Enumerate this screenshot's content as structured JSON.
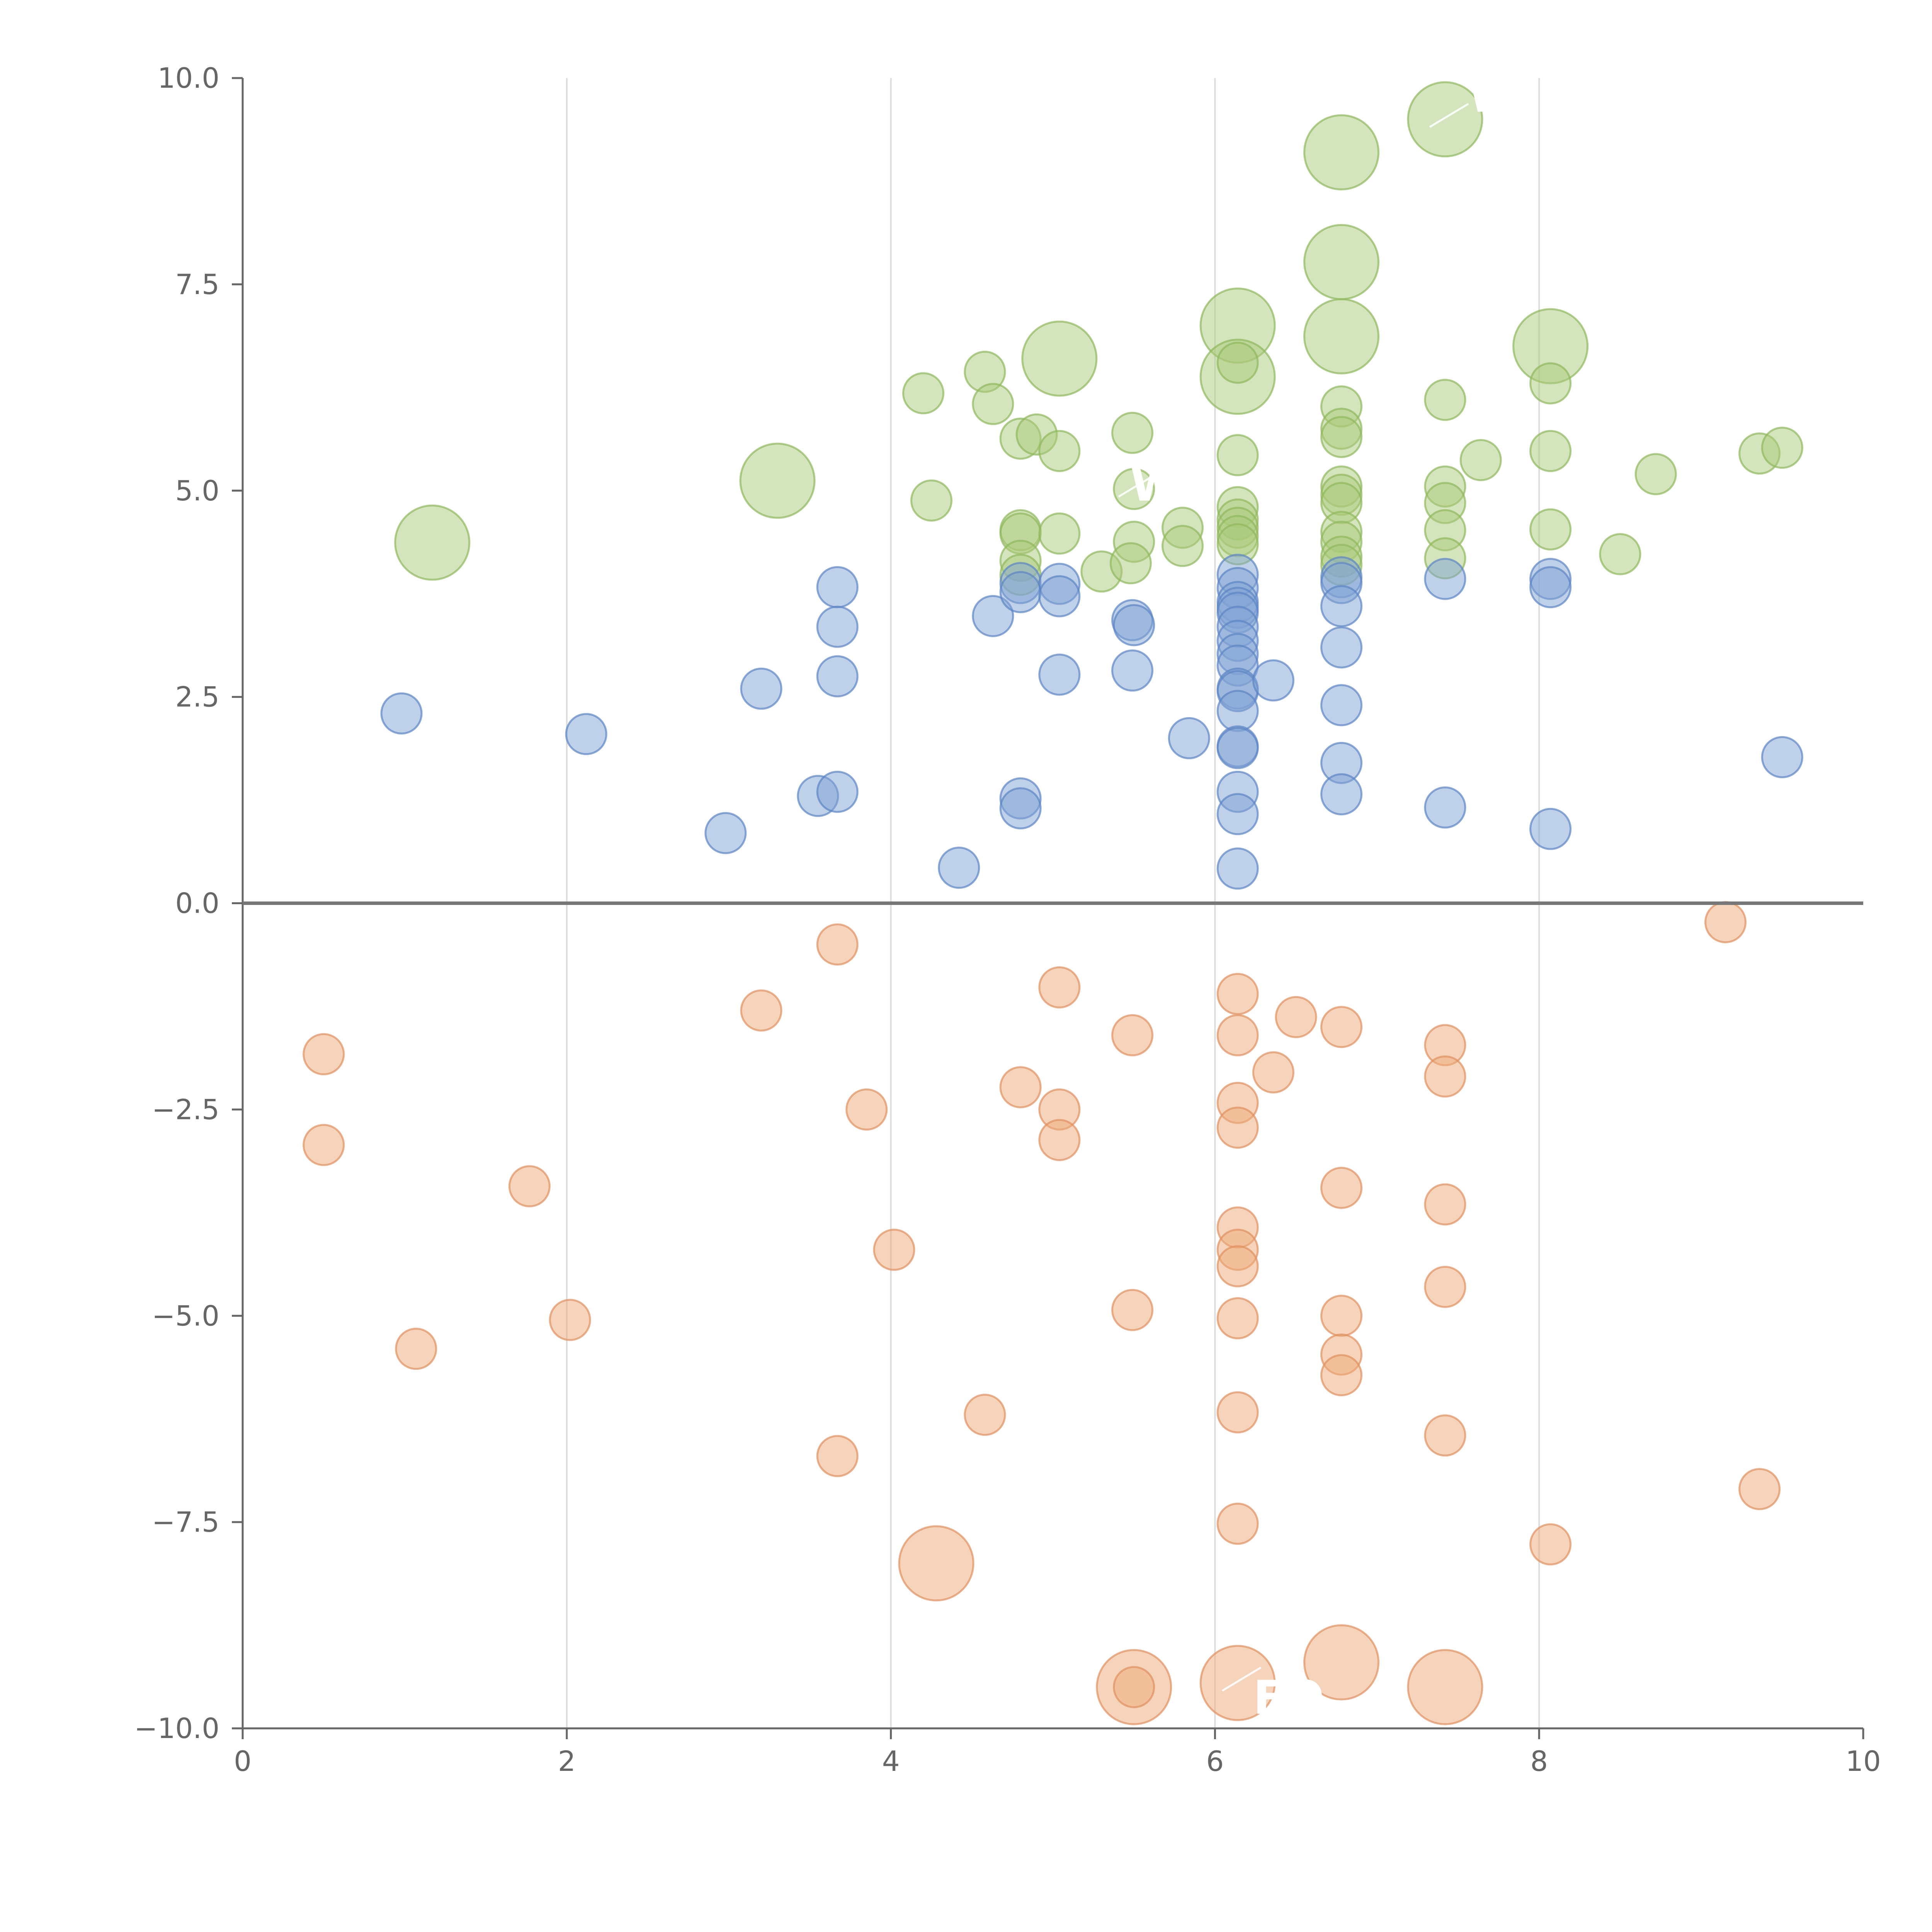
{
  "chart_data": {
    "type": "scatter",
    "title": "",
    "xlabel": "",
    "ylabel": "",
    "xlim": [
      0,
      10
    ],
    "ylim": [
      -10,
      10
    ],
    "x_ticks": [
      0,
      2,
      4,
      6,
      8,
      10
    ],
    "x_tick_labels": [
      "0",
      "2",
      "4",
      "6",
      "8",
      "10"
    ],
    "y_ticks": [
      10,
      7.5,
      5,
      2.5,
      0,
      -2.5,
      -5,
      -7.5,
      -10
    ],
    "y_tick_labels": [
      "10.0",
      "7.5",
      "5.0",
      "2.5",
      "0.0",
      "−2.5",
      "−5.0",
      "−7.5",
      "−10.0"
    ],
    "grid": "vertical",
    "reference_line_y": 0,
    "series": [
      {
        "name": "green",
        "color": "#a9c97a",
        "stroke": "#8fb85c",
        "points": [
          [
            1.17,
            4.37,
            2
          ],
          [
            3.3,
            5.12,
            2
          ],
          [
            4.2,
            6.18,
            1
          ],
          [
            4.25,
            4.88,
            1
          ],
          [
            4.58,
            6.44,
            1
          ],
          [
            4.63,
            6.05,
            1
          ],
          [
            4.8,
            5.63,
            1
          ],
          [
            4.9,
            5.68,
            1
          ],
          [
            5.04,
            6.6,
            2
          ],
          [
            5.04,
            5.48,
            1
          ],
          [
            4.8,
            4.52,
            1
          ],
          [
            4.8,
            4.48,
            1
          ],
          [
            5.04,
            4.48,
            1
          ],
          [
            4.8,
            4.15,
            1
          ],
          [
            4.8,
            3.98,
            1
          ],
          [
            5.3,
            4.02,
            1
          ],
          [
            5.49,
            5.7,
            1
          ],
          [
            5.5,
            5.02,
            1
          ],
          [
            5.5,
            4.38,
            1
          ],
          [
            5.48,
            4.12,
            1
          ],
          [
            5.8,
            4.55,
            1
          ],
          [
            5.8,
            4.33,
            1
          ],
          [
            6.14,
            7.0,
            2
          ],
          [
            6.14,
            6.38,
            2
          ],
          [
            6.14,
            6.55,
            1
          ],
          [
            6.14,
            5.43,
            1
          ],
          [
            6.14,
            4.8,
            1
          ],
          [
            6.14,
            4.65,
            1
          ],
          [
            6.14,
            4.55,
            1
          ],
          [
            6.14,
            4.45,
            1
          ],
          [
            6.14,
            4.35,
            1
          ],
          [
            6.78,
            9.1,
            2
          ],
          [
            6.78,
            7.77,
            2
          ],
          [
            6.78,
            6.87,
            2
          ],
          [
            6.78,
            6.02,
            1
          ],
          [
            6.78,
            5.75,
            1
          ],
          [
            6.78,
            5.65,
            1
          ],
          [
            6.78,
            5.05,
            1
          ],
          [
            6.78,
            4.95,
            1
          ],
          [
            6.78,
            4.85,
            1
          ],
          [
            6.78,
            4.5,
            1
          ],
          [
            6.78,
            4.38,
            1
          ],
          [
            6.78,
            4.2,
            1
          ],
          [
            6.78,
            4.1,
            1
          ],
          [
            7.42,
            9.5,
            2
          ],
          [
            7.42,
            6.1,
            1
          ],
          [
            7.42,
            5.05,
            1
          ],
          [
            7.42,
            4.85,
            1
          ],
          [
            7.42,
            4.52,
            1
          ],
          [
            7.42,
            4.18,
            1
          ],
          [
            7.64,
            5.37,
            1
          ],
          [
            8.07,
            6.75,
            2
          ],
          [
            8.07,
            6.3,
            1
          ],
          [
            8.07,
            5.48,
            1
          ],
          [
            8.07,
            4.53,
            1
          ],
          [
            8.5,
            4.23,
            1
          ],
          [
            8.72,
            5.2,
            1
          ],
          [
            9.36,
            5.45,
            1
          ],
          [
            9.5,
            5.52,
            1
          ]
        ]
      },
      {
        "name": "blue",
        "color": "#7fa2d4",
        "stroke": "#5b84c4",
        "points": [
          [
            0.98,
            2.3,
            1
          ],
          [
            2.12,
            2.05,
            1
          ],
          [
            2.98,
            0.85,
            1
          ],
          [
            3.2,
            2.6,
            1
          ],
          [
            3.55,
            1.3,
            1
          ],
          [
            3.67,
            3.83,
            1
          ],
          [
            3.67,
            3.35,
            1
          ],
          [
            3.67,
            2.75,
            1
          ],
          [
            3.67,
            1.35,
            1
          ],
          [
            4.42,
            0.43,
            1
          ],
          [
            4.63,
            3.48,
            1
          ],
          [
            4.8,
            3.88,
            1
          ],
          [
            4.8,
            3.77,
            1
          ],
          [
            4.8,
            1.27,
            1
          ],
          [
            4.8,
            1.15,
            1
          ],
          [
            5.04,
            3.87,
            1
          ],
          [
            5.04,
            3.72,
            1
          ],
          [
            5.04,
            2.77,
            1
          ],
          [
            5.49,
            3.43,
            1
          ],
          [
            5.5,
            3.37,
            1
          ],
          [
            5.49,
            2.82,
            1
          ],
          [
            5.84,
            2.0,
            1
          ],
          [
            6.14,
            3.98,
            1
          ],
          [
            6.14,
            3.82,
            1
          ],
          [
            6.14,
            3.65,
            1
          ],
          [
            6.14,
            3.58,
            1
          ],
          [
            6.14,
            3.52,
            1
          ],
          [
            6.14,
            3.35,
            1
          ],
          [
            6.14,
            3.18,
            1
          ],
          [
            6.14,
            3.02,
            1
          ],
          [
            6.14,
            2.88,
            1
          ],
          [
            6.14,
            2.6,
            1
          ],
          [
            6.14,
            2.57,
            1
          ],
          [
            6.14,
            2.33,
            1
          ],
          [
            6.14,
            1.9,
            1
          ],
          [
            6.14,
            1.88,
            1
          ],
          [
            6.14,
            1.35,
            1
          ],
          [
            6.14,
            1.08,
            1
          ],
          [
            6.14,
            0.42,
            1
          ],
          [
            6.36,
            2.7,
            1
          ],
          [
            6.78,
            3.95,
            1
          ],
          [
            6.78,
            3.88,
            1
          ],
          [
            6.78,
            3.6,
            1
          ],
          [
            6.78,
            3.1,
            1
          ],
          [
            6.78,
            2.4,
            1
          ],
          [
            6.78,
            1.7,
            1
          ],
          [
            6.78,
            1.32,
            1
          ],
          [
            7.42,
            3.93,
            1
          ],
          [
            7.42,
            1.16,
            1
          ],
          [
            8.07,
            3.93,
            1
          ],
          [
            8.07,
            3.83,
            1
          ],
          [
            8.07,
            0.9,
            1
          ],
          [
            9.5,
            1.77,
            1
          ]
        ]
      },
      {
        "name": "orange",
        "color": "#eeaa7a",
        "stroke": "#e09060",
        "points": [
          [
            0.5,
            -1.83,
            1
          ],
          [
            0.5,
            -2.93,
            1
          ],
          [
            1.07,
            -5.4,
            1
          ],
          [
            1.77,
            -3.43,
            1
          ],
          [
            2.02,
            -5.05,
            1
          ],
          [
            3.2,
            -1.3,
            1
          ],
          [
            3.67,
            -0.5,
            1
          ],
          [
            3.67,
            -6.7,
            1
          ],
          [
            3.85,
            -2.5,
            1
          ],
          [
            4.02,
            -4.2,
            1
          ],
          [
            4.28,
            -8.0,
            2
          ],
          [
            4.58,
            -6.2,
            1
          ],
          [
            4.8,
            -2.23,
            1
          ],
          [
            5.04,
            -1.02,
            1
          ],
          [
            5.04,
            -2.5,
            1
          ],
          [
            5.04,
            -2.87,
            1
          ],
          [
            5.49,
            -1.6,
            1
          ],
          [
            5.49,
            -4.93,
            1
          ],
          [
            5.5,
            -9.5,
            2
          ],
          [
            5.5,
            -9.5,
            1
          ],
          [
            6.14,
            -1.1,
            1
          ],
          [
            6.14,
            -1.6,
            1
          ],
          [
            6.14,
            -2.42,
            1
          ],
          [
            6.14,
            -2.72,
            1
          ],
          [
            6.14,
            -3.93,
            1
          ],
          [
            6.14,
            -4.2,
            1
          ],
          [
            6.14,
            -4.4,
            1
          ],
          [
            6.14,
            -5.03,
            1
          ],
          [
            6.14,
            -6.17,
            1
          ],
          [
            6.14,
            -7.52,
            1
          ],
          [
            6.14,
            -9.45,
            2
          ],
          [
            6.36,
            -2.05,
            1
          ],
          [
            6.5,
            -1.38,
            1
          ],
          [
            6.78,
            -1.5,
            1
          ],
          [
            6.78,
            -3.45,
            1
          ],
          [
            6.78,
            -5.0,
            1
          ],
          [
            6.78,
            -5.47,
            1
          ],
          [
            6.78,
            -5.72,
            1
          ],
          [
            6.78,
            -9.2,
            2
          ],
          [
            7.42,
            -1.72,
            1
          ],
          [
            7.42,
            -2.1,
            1
          ],
          [
            7.42,
            -3.65,
            1
          ],
          [
            7.42,
            -4.65,
            1
          ],
          [
            7.42,
            -6.45,
            1
          ],
          [
            7.42,
            -9.5,
            2
          ],
          [
            8.07,
            -7.77,
            1
          ],
          [
            9.15,
            -0.23,
            1
          ],
          [
            9.36,
            -7.1,
            1
          ]
        ]
      }
    ],
    "annotations": [
      {
        "label": "W",
        "point_x": 7.42,
        "point_y": 9.5
      },
      {
        "label": "W",
        "point_x": 5.5,
        "point_y": 5.02
      },
      {
        "label": "FO",
        "point_x": 6.14,
        "point_y": -9.45
      }
    ]
  }
}
